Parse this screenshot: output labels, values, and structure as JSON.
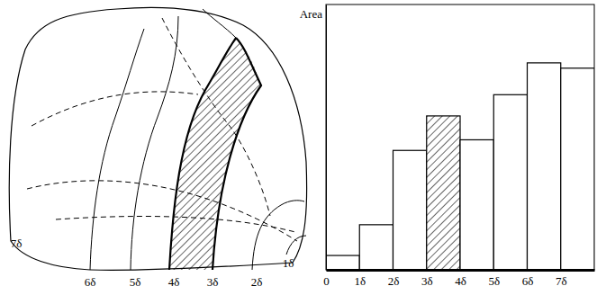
{
  "chart_data": {
    "type": "histogram",
    "y_label": "Area",
    "bins": [
      0,
      1,
      2,
      3,
      4,
      5,
      6,
      7,
      8
    ],
    "values": [
      5.4,
      17,
      45,
      58,
      49,
      66,
      78,
      76
    ],
    "colors": [
      "#ffffff",
      "#ffffff",
      "#ffffff",
      "hatched",
      "#ffffff",
      "#ffffff",
      "#ffffff",
      "#ffffff"
    ],
    "xlim": [
      0,
      8
    ],
    "xticks": [
      0,
      {
        "value": 1,
        "label": "1δ"
      },
      {
        "value": 2,
        "label": "2δ"
      },
      {
        "value": 3,
        "label": "3δ"
      },
      {
        "value": 4,
        "label": "4δ"
      },
      {
        "value": 5,
        "label": "5δ"
      },
      {
        "value": 6,
        "label": "6δ"
      },
      {
        "value": 7,
        "label": "7δ"
      }
    ],
    "ylim": [
      0,
      100
    ],
    "grid": false,
    "tick_labels": "x"
  },
  "diagram": {
    "contour_labels": [
      "7δ",
      "6δ",
      "5δ",
      "4δ",
      "3δ",
      "2δ",
      "1δ"
    ]
  }
}
